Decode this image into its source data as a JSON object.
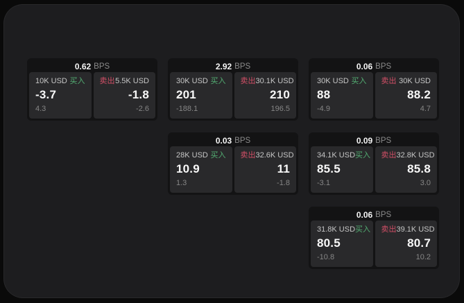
{
  "labels": {
    "bps": "BPS",
    "buy": "买入",
    "sell": "卖出"
  },
  "colors": {
    "buy": "#53ad72",
    "sell": "#d14f66",
    "panel_bg": "#1d1d1f",
    "card_bg": "#131314",
    "pane_bg": "#29292b"
  },
  "cards": [
    {
      "col": 0,
      "row": 0,
      "bps": "0.62",
      "buy": {
        "amount": "10K USD",
        "price": "-3.7",
        "delta": "4.3"
      },
      "sell": {
        "amount": "5.5K USD",
        "price": "-1.8",
        "delta": "-2.6"
      }
    },
    {
      "col": 1,
      "row": 0,
      "bps": "2.92",
      "buy": {
        "amount": "30K USD",
        "price": "201",
        "delta": "-188.1"
      },
      "sell": {
        "amount": "30.1K USD",
        "price": "210",
        "delta": "196.5"
      }
    },
    {
      "col": 2,
      "row": 0,
      "bps": "0.06",
      "buy": {
        "amount": "30K USD",
        "price": "88",
        "delta": "-4.9"
      },
      "sell": {
        "amount": "30K USD",
        "price": "88.2",
        "delta": "4.7"
      }
    },
    {
      "col": 1,
      "row": 1,
      "bps": "0.03",
      "buy": {
        "amount": "28K USD",
        "price": "10.9",
        "delta": "1.3"
      },
      "sell": {
        "amount": "32.6K USD",
        "price": "11",
        "delta": "-1.8"
      }
    },
    {
      "col": 2,
      "row": 1,
      "bps": "0.09",
      "buy": {
        "amount": "34.1K USD",
        "price": "85.5",
        "delta": "-3.1"
      },
      "sell": {
        "amount": "32.8K USD",
        "price": "85.8",
        "delta": "3.0"
      }
    },
    {
      "col": 2,
      "row": 2,
      "bps": "0.06",
      "buy": {
        "amount": "31.8K USD",
        "price": "80.5",
        "delta": "-10.8"
      },
      "sell": {
        "amount": "39.1K USD",
        "price": "80.7",
        "delta": "10.2"
      }
    }
  ]
}
